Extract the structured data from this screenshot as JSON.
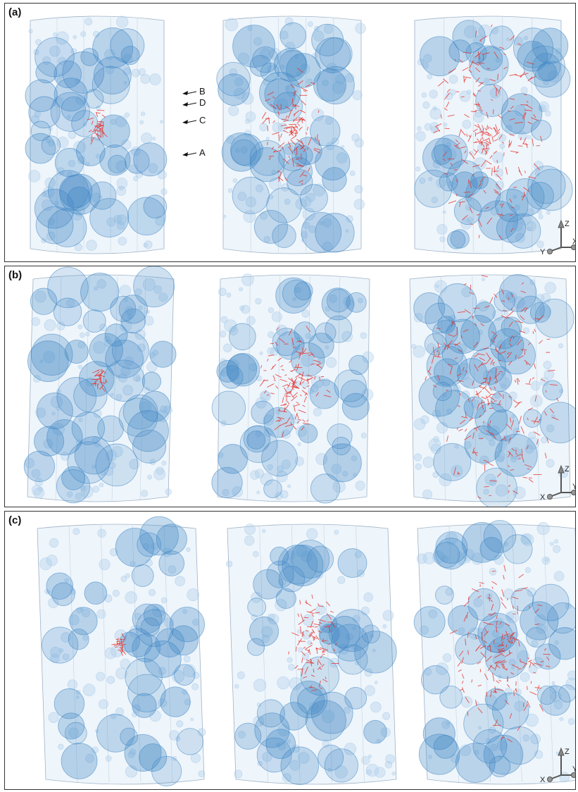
{
  "panels": [
    {
      "label": "(a)",
      "annotations": [
        "B",
        "D",
        "C",
        "A"
      ],
      "axes": {
        "up": "Z",
        "left": "Y",
        "right": "X"
      }
    },
    {
      "label": "(b)",
      "annotations": [],
      "axes": {
        "up": "Z",
        "left": "X",
        "right": "Y"
      }
    },
    {
      "label": "(c)",
      "annotations": [],
      "axes": {
        "up": "Z",
        "left": "X",
        "right": "Y"
      }
    }
  ],
  "colors": {
    "bubble": "#3f86c4",
    "bubble_light": "#a9cbe9",
    "crack": "#e8322b",
    "frame": "#333333"
  }
}
